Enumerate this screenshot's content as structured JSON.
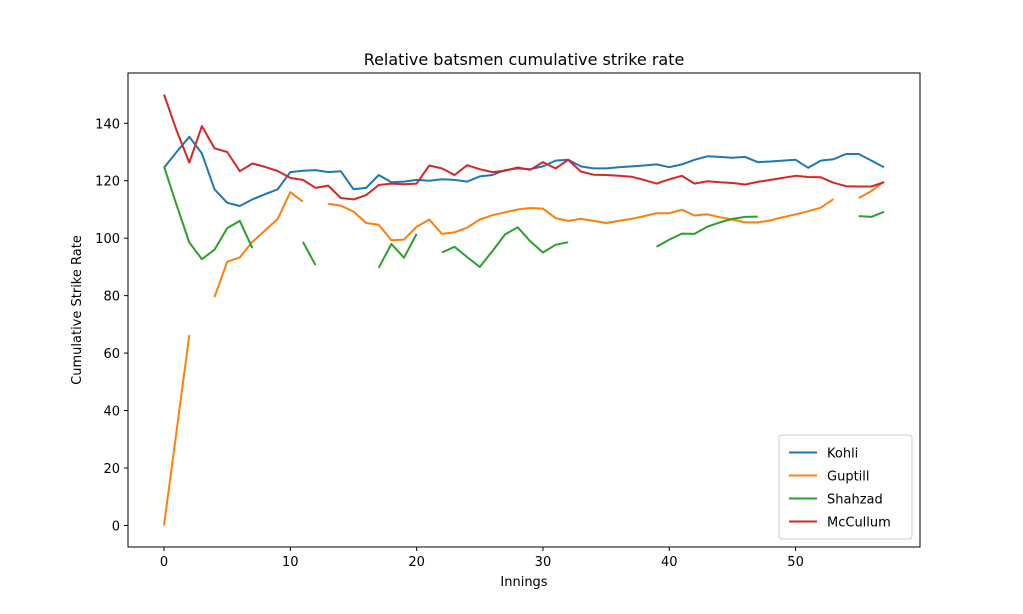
{
  "chart_data": {
    "type": "line",
    "title": "Relative batsmen cumulative strike rate",
    "xlabel": "Innings",
    "ylabel": "Cumulative Strike Rate",
    "xlim": [
      -2.85,
      59.85
    ],
    "ylim": [
      -7.5,
      157.5
    ],
    "xticks": [
      0,
      10,
      20,
      30,
      40,
      50
    ],
    "yticks": [
      0,
      20,
      40,
      60,
      80,
      100,
      120,
      140
    ],
    "grid": false,
    "legend_position": "lower-right",
    "series": [
      {
        "name": "Kohli",
        "color": "#1f77b4",
        "values": [
          124.5,
          130.0,
          135.3,
          129.5,
          117.0,
          112.3,
          111.2,
          113.5,
          115.3,
          117.0,
          123.0,
          123.5,
          123.7,
          123.0,
          123.3,
          117.0,
          117.5,
          122.0,
          119.5,
          119.7,
          120.3,
          120.0,
          120.5,
          120.3,
          119.7,
          121.5,
          122.0,
          123.7,
          124.3,
          124.0,
          125.0,
          127.0,
          127.3,
          125.0,
          124.3,
          124.3,
          124.7,
          125.0,
          125.3,
          125.7,
          124.7,
          125.7,
          127.3,
          128.5,
          128.3,
          128.0,
          128.3,
          126.5,
          126.7,
          127.0,
          127.3,
          124.5,
          127.0,
          127.5,
          129.3,
          129.3,
          127.0,
          124.7
        ]
      },
      {
        "name": "Guptill",
        "color": "#ff7f0e",
        "values": [
          0.0,
          33.0,
          66.3,
          null,
          79.5,
          91.8,
          93.3,
          98.7,
          102.7,
          106.7,
          116.0,
          112.7,
          null,
          112.0,
          111.3,
          109.3,
          105.3,
          104.7,
          99.3,
          99.5,
          104.0,
          106.5,
          101.5,
          102.0,
          103.7,
          106.5,
          108.0,
          109.0,
          110.0,
          110.5,
          110.3,
          107.0,
          106.0,
          106.7,
          106.0,
          105.3,
          106.0,
          106.7,
          107.7,
          108.7,
          108.7,
          109.9,
          107.9,
          108.3,
          107.3,
          106.5,
          105.5,
          105.5,
          106.2,
          107.3,
          108.3,
          109.4,
          110.6,
          113.6,
          null,
          114.0,
          116.4,
          119.7
        ]
      },
      {
        "name": "Shahzad",
        "color": "#2ca02c",
        "values": [
          125.0,
          111.5,
          98.5,
          92.7,
          96.0,
          103.5,
          106.0,
          96.5,
          null,
          null,
          null,
          98.7,
          90.6,
          null,
          null,
          null,
          null,
          89.7,
          98.0,
          93.2,
          101.5,
          null,
          95.0,
          97.0,
          93.4,
          90.0,
          95.5,
          101.3,
          103.8,
          98.9,
          95.0,
          97.7,
          98.6,
          null,
          null,
          null,
          null,
          null,
          null,
          97.0,
          99.5,
          101.6,
          101.5,
          104.0,
          105.5,
          106.7,
          107.4,
          107.5,
          null,
          null,
          null,
          null,
          null,
          null,
          null,
          107.7,
          107.4,
          109.2
        ]
      },
      {
        "name": "McCullum",
        "color": "#d62728",
        "values": [
          150.0,
          137.5,
          126.3,
          139.0,
          131.3,
          130.0,
          123.3,
          126.0,
          124.8,
          123.4,
          121.0,
          120.3,
          117.5,
          118.3,
          114.0,
          113.5,
          115.0,
          118.5,
          119.0,
          118.8,
          119.0,
          125.3,
          124.3,
          122.0,
          125.4,
          124.0,
          123.0,
          123.5,
          124.6,
          123.8,
          126.5,
          124.3,
          127.3,
          123.2,
          122.1,
          122.0,
          121.7,
          121.4,
          120.3,
          119.0,
          120.5,
          121.7,
          119.0,
          119.8,
          119.5,
          119.2,
          118.7,
          119.6,
          120.3,
          121.0,
          121.7,
          121.3,
          121.2,
          119.3,
          118.1,
          118.0,
          118.0,
          119.5
        ]
      }
    ]
  }
}
